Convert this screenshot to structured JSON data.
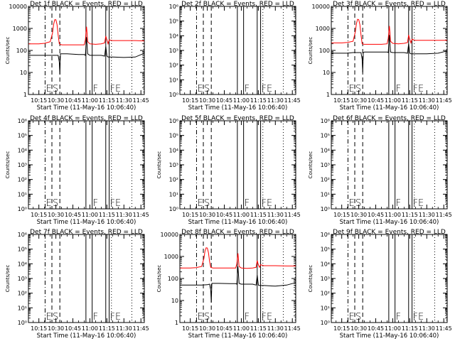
{
  "colors": {
    "events": "#000000",
    "lld": "#ff0000",
    "axes": "#000000"
  },
  "x_ticks": [
    "10:15",
    "10:30",
    "10:45",
    "11:00",
    "11:15",
    "11:30",
    "11:45"
  ],
  "x_tick_minutes": [
    15,
    30,
    45,
    60,
    75,
    90,
    105
  ],
  "x_range_minutes": [
    5.8,
    108
  ],
  "markers": [
    {
      "minute": 20.5,
      "style": "dotdash",
      "label": "E"
    },
    {
      "minute": 26.5,
      "style": "dashed",
      "label": "S"
    },
    {
      "minute": 33.5,
      "style": "dashed",
      "label": ""
    },
    {
      "minute": 56.5,
      "style": "solid",
      "label": ""
    },
    {
      "minute": 62.0,
      "style": "solid",
      "label": "F"
    },
    {
      "minute": 74.0,
      "style": "solid",
      "label": ""
    },
    {
      "minute": 77.0,
      "style": "solid",
      "label": "FE"
    },
    {
      "minute": 79.0,
      "style": "dotted",
      "label": ""
    },
    {
      "minute": 97.0,
      "style": "dotted",
      "label": ""
    },
    {
      "minute": 107.5,
      "style": "dotted",
      "label": ""
    }
  ],
  "chart_data": [
    {
      "type": "line",
      "title": "Det 1f BLACK = Events, RED = LLD",
      "xlabel": "Start Time (11-May-16 10:06:40)",
      "ylabel": "Counts/sec",
      "yscale": "log",
      "ylim": [
        1,
        10000
      ],
      "y_ticks": [
        {
          "v": 1,
          "label": "1"
        },
        {
          "v": 10,
          "label": "10"
        },
        {
          "v": 100,
          "label": "100"
        },
        {
          "v": 1000,
          "label": "1000"
        },
        {
          "v": 10000,
          "label": "10000"
        }
      ],
      "series": [
        {
          "color": "red",
          "x": [
            6,
            15,
            20,
            25,
            27,
            28,
            29,
            30,
            31,
            32,
            33,
            35,
            40,
            50,
            55,
            56,
            57,
            57.5,
            58,
            60,
            65,
            70,
            73,
            74,
            75,
            76,
            77,
            80,
            90,
            100,
            108
          ],
          "y": [
            200,
            200,
            210,
            250,
            600,
            1500,
            2500,
            2500,
            1500,
            500,
            200,
            180,
            180,
            180,
            180,
            300,
            1200,
            600,
            250,
            200,
            190,
            200,
            220,
            450,
            300,
            200,
            300,
            280,
            280,
            280,
            270
          ]
        },
        {
          "color": "black",
          "x": [
            6,
            15,
            20,
            25,
            30,
            32,
            33,
            33.5,
            34,
            35,
            40,
            50,
            55,
            56,
            57,
            58,
            60,
            65,
            70,
            73,
            74,
            75,
            76,
            78,
            80,
            90,
            100,
            108
          ],
          "y": [
            60,
            60,
            60,
            60,
            60,
            60,
            30,
            8,
            70,
            70,
            70,
            65,
            65,
            60,
            400,
            70,
            60,
            60,
            60,
            55,
            150,
            55,
            50,
            50,
            50,
            48,
            50,
            75
          ]
        }
      ]
    },
    {
      "type": "line",
      "title": "Det 2f BLACK = Events, RED = LLD",
      "xlabel": "Start Time (11-May-16 10:06:40)",
      "ylabel": "",
      "yscale": "log",
      "ylim": [
        1,
        1000000
      ],
      "y_ticks": [
        {
          "v": 1,
          "label": "10⁰"
        },
        {
          "v": 10,
          "label": "10¹"
        },
        {
          "v": 100,
          "label": "10²"
        },
        {
          "v": 1000,
          "label": "10³"
        },
        {
          "v": 10000,
          "label": "10⁴"
        },
        {
          "v": 100000,
          "label": "10⁵"
        },
        {
          "v": 1000000,
          "label": "10⁶"
        }
      ],
      "series": []
    },
    {
      "type": "line",
      "title": "Det 3f BLACK = Events, RED = LLD",
      "xlabel": "Start Time (11-May-16 10:06:40)",
      "ylabel": "Counts/sec",
      "yscale": "log",
      "ylim": [
        1,
        10000
      ],
      "y_ticks": [
        {
          "v": 1,
          "label": "1"
        },
        {
          "v": 10,
          "label": "10"
        },
        {
          "v": 100,
          "label": "100"
        },
        {
          "v": 1000,
          "label": "1000"
        },
        {
          "v": 10000,
          "label": "10000"
        }
      ],
      "series": [
        {
          "color": "red",
          "x": [
            6,
            15,
            20,
            25,
            27,
            28,
            29,
            30,
            31,
            32,
            33,
            35,
            40,
            50,
            55,
            56,
            57,
            57.5,
            58,
            60,
            65,
            70,
            73,
            74,
            75,
            76,
            77,
            80,
            90,
            100,
            108
          ],
          "y": [
            220,
            220,
            230,
            260,
            700,
            1700,
            2600,
            2500,
            1500,
            500,
            200,
            190,
            190,
            190,
            200,
            350,
            1300,
            650,
            260,
            210,
            200,
            210,
            230,
            500,
            320,
            220,
            320,
            290,
            290,
            290,
            290
          ]
        },
        {
          "color": "black",
          "x": [
            6,
            15,
            20,
            25,
            30,
            32,
            33,
            33.5,
            34,
            35,
            40,
            50,
            55,
            56,
            57,
            58,
            60,
            65,
            70,
            73,
            74,
            75,
            76,
            78,
            80,
            90,
            100,
            108
          ],
          "y": [
            75,
            75,
            75,
            80,
            80,
            80,
            40,
            10,
            80,
            85,
            85,
            85,
            85,
            80,
            500,
            85,
            80,
            80,
            80,
            75,
            200,
            75,
            70,
            70,
            70,
            70,
            75,
            95
          ]
        }
      ]
    },
    {
      "type": "line",
      "title": "Det 4f BLACK = Events, RED = LLD",
      "xlabel": "Start Time (11-May-16 10:06:40)",
      "ylabel": "Counts/sec",
      "yscale": "log",
      "ylim": [
        1,
        1000000
      ],
      "y_ticks": [
        {
          "v": 1,
          "label": "10⁰"
        },
        {
          "v": 10,
          "label": "10¹"
        },
        {
          "v": 100,
          "label": "10²"
        },
        {
          "v": 1000,
          "label": "10³"
        },
        {
          "v": 10000,
          "label": "10⁴"
        },
        {
          "v": 100000,
          "label": "10⁵"
        },
        {
          "v": 1000000,
          "label": "10⁶"
        }
      ],
      "series": []
    },
    {
      "type": "line",
      "title": "Det 5f BLACK = Events, RED = LLD",
      "xlabel": "Start Time (11-May-16 10:06:40)",
      "ylabel": "Counts/sec",
      "yscale": "log",
      "ylim": [
        1,
        1000000
      ],
      "y_ticks": [
        {
          "v": 1,
          "label": "10⁰"
        },
        {
          "v": 10,
          "label": "10¹"
        },
        {
          "v": 100,
          "label": "10²"
        },
        {
          "v": 1000,
          "label": "10³"
        },
        {
          "v": 10000,
          "label": "10⁴"
        },
        {
          "v": 100000,
          "label": "10⁵"
        },
        {
          "v": 1000000,
          "label": "10⁶"
        }
      ],
      "series": []
    },
    {
      "type": "line",
      "title": "Det 6f BLACK = Events, RED = LLD",
      "xlabel": "Start Time (11-May-16 10:06:40)",
      "ylabel": "Counts/sec",
      "yscale": "log",
      "ylim": [
        1,
        1000000
      ],
      "y_ticks": [
        {
          "v": 1,
          "label": "10⁰"
        },
        {
          "v": 10,
          "label": "10¹"
        },
        {
          "v": 100,
          "label": "10²"
        },
        {
          "v": 1000,
          "label": "10³"
        },
        {
          "v": 10000,
          "label": "10⁴"
        },
        {
          "v": 100000,
          "label": "10⁵"
        },
        {
          "v": 1000000,
          "label": "10⁶"
        }
      ],
      "series": []
    },
    {
      "type": "line",
      "title": "Det 7f BLACK = Events, RED = LLD",
      "xlabel": "Start Time (11-May-16 10:06:40)",
      "ylabel": "Counts/sec",
      "yscale": "log",
      "ylim": [
        1,
        1000000
      ],
      "y_ticks": [
        {
          "v": 1,
          "label": "10⁰"
        },
        {
          "v": 10,
          "label": "10¹"
        },
        {
          "v": 100,
          "label": "10²"
        },
        {
          "v": 1000,
          "label": "10³"
        },
        {
          "v": 10000,
          "label": "10⁴"
        },
        {
          "v": 100000,
          "label": "10⁵"
        },
        {
          "v": 1000000,
          "label": "10⁶"
        }
      ],
      "series": []
    },
    {
      "type": "line",
      "title": "Det 8f BLACK = Events, RED = LLD",
      "xlabel": "Start Time (11-May-16 10:06:40)",
      "ylabel": "Counts/sec",
      "yscale": "log",
      "ylim": [
        1,
        10000
      ],
      "y_ticks": [
        {
          "v": 1,
          "label": "1"
        },
        {
          "v": 10,
          "label": "10"
        },
        {
          "v": 100,
          "label": "100"
        },
        {
          "v": 1000,
          "label": "1000"
        },
        {
          "v": 10000,
          "label": "10000"
        }
      ],
      "series": [
        {
          "color": "red",
          "x": [
            6,
            15,
            20,
            25,
            27,
            28,
            29,
            30,
            31,
            32,
            33,
            35,
            40,
            50,
            55,
            56,
            57,
            57.5,
            58,
            60,
            65,
            70,
            73,
            74,
            75,
            76,
            77,
            80,
            90,
            100,
            108
          ],
          "y": [
            300,
            300,
            310,
            350,
            800,
            1800,
            2500,
            2400,
            1500,
            600,
            320,
            300,
            300,
            300,
            300,
            450,
            1400,
            700,
            350,
            300,
            290,
            300,
            320,
            650,
            420,
            320,
            420,
            380,
            380,
            370,
            370
          ]
        },
        {
          "color": "black",
          "x": [
            6,
            15,
            20,
            25,
            30,
            32,
            33,
            33.5,
            34,
            35,
            40,
            50,
            55,
            56,
            57,
            58,
            60,
            65,
            70,
            73,
            74,
            75,
            76,
            78,
            80,
            90,
            100,
            108
          ],
          "y": [
            50,
            50,
            50,
            50,
            52,
            55,
            30,
            8,
            60,
            60,
            60,
            58,
            58,
            55,
            350,
            60,
            55,
            55,
            55,
            50,
            140,
            50,
            48,
            48,
            48,
            45,
            50,
            65
          ]
        }
      ]
    },
    {
      "type": "line",
      "title": "Det 9f BLACK = Events, RED = LLD",
      "xlabel": "Start Time (11-May-16 10:06:40)",
      "ylabel": "Counts/sec",
      "yscale": "log",
      "ylim": [
        1,
        1000000
      ],
      "y_ticks": [
        {
          "v": 1,
          "label": "10⁰"
        },
        {
          "v": 10,
          "label": "10¹"
        },
        {
          "v": 100,
          "label": "10²"
        },
        {
          "v": 1000,
          "label": "10³"
        },
        {
          "v": 10000,
          "label": "10⁴"
        },
        {
          "v": 100000,
          "label": "10⁵"
        },
        {
          "v": 1000000,
          "label": "10⁶"
        }
      ],
      "series": []
    }
  ]
}
